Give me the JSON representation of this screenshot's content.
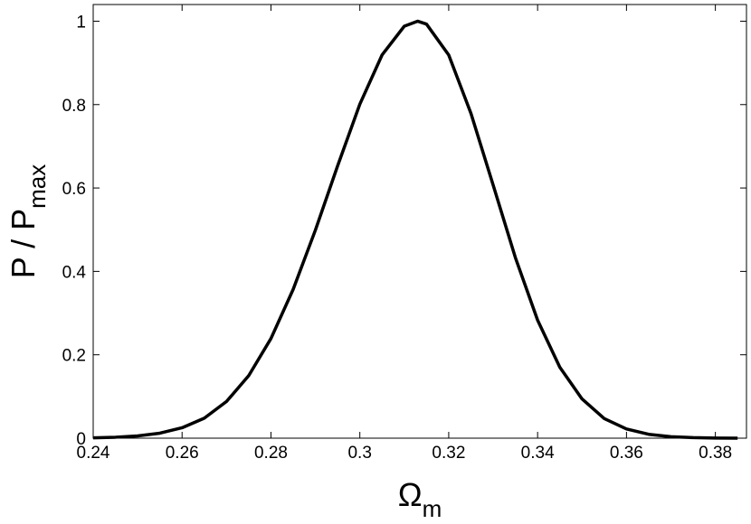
{
  "chart_data": {
    "type": "line",
    "xlabel": "Ω",
    "xlabel_sub": "m",
    "ylabel": "P / P",
    "ylabel_sub": "max",
    "x": [
      0.24,
      0.245,
      0.25,
      0.255,
      0.26,
      0.265,
      0.27,
      0.275,
      0.28,
      0.285,
      0.29,
      0.295,
      0.3,
      0.305,
      0.31,
      0.313,
      0.315,
      0.32,
      0.325,
      0.33,
      0.335,
      0.34,
      0.345,
      0.35,
      0.355,
      0.36,
      0.365,
      0.37,
      0.375,
      0.38,
      0.385
    ],
    "series": [
      {
        "color": "#000000",
        "values": [
          0.0009,
          0.0023,
          0.0054,
          0.012,
          0.025,
          0.048,
          0.088,
          0.15,
          0.239,
          0.357,
          0.499,
          0.653,
          0.801,
          0.919,
          0.988,
          1,
          0.993,
          0.919,
          0.779,
          0.607,
          0.433,
          0.283,
          0.17,
          0.094,
          0.047,
          0.022,
          0.0093,
          0.0036,
          0.0013,
          0.0004,
          0.0001
        ]
      }
    ],
    "xlim": [
      0.24,
      0.387
    ],
    "xticks": [
      0.24,
      0.26,
      0.28,
      0.3,
      0.32,
      0.34,
      0.36,
      0.38
    ],
    "ylim": [
      0,
      1.04
    ],
    "yticks": [
      0,
      0.2,
      0.4,
      0.6,
      0.8,
      1
    ]
  }
}
